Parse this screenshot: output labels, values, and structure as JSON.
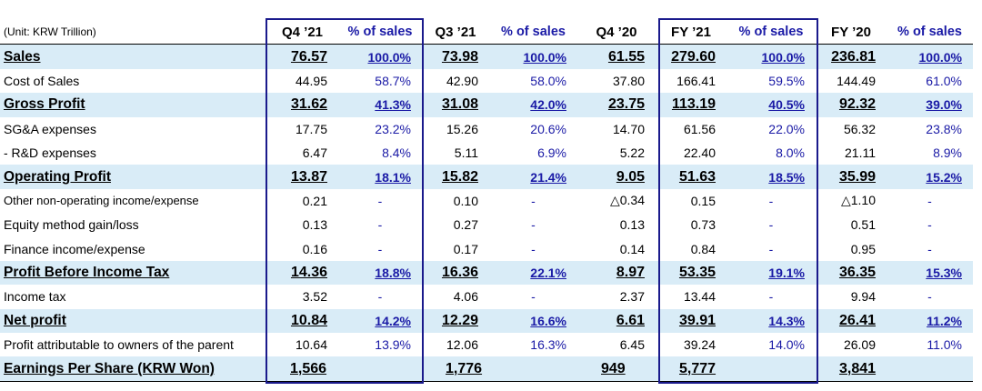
{
  "header": {
    "unit": "(Unit: KRW Trillion)",
    "columns": [
      "Q4 ’21",
      "% of sales",
      "Q3 ’21",
      "% of sales",
      "Q4 ’20",
      "FY ’21",
      "% of sales",
      "FY ’20",
      "% of sales"
    ]
  },
  "rows": [
    {
      "label": "Sales",
      "hl": true,
      "q421": "76.57",
      "q421p": "100.0%",
      "q321": "73.98",
      "q321p": "100.0%",
      "q420": "61.55",
      "fy21": "279.60",
      "fy21p": "100.0%",
      "fy20": "236.81",
      "fy20p": "100.0%"
    },
    {
      "label": "Cost of Sales",
      "q421": "44.95",
      "q421p": "58.7%",
      "q321": "42.90",
      "q321p": "58.0%",
      "q420": "37.80",
      "fy21": "166.41",
      "fy21p": "59.5%",
      "fy20": "144.49",
      "fy20p": "61.0%"
    },
    {
      "label": "Gross Profit",
      "hl": true,
      "q421": "31.62",
      "q421p": "41.3%",
      "q321": "31.08",
      "q321p": "42.0%",
      "q420": "23.75",
      "fy21": "113.19",
      "fy21p": "40.5%",
      "fy20": "92.32",
      "fy20p": "39.0%"
    },
    {
      "label": "SG&A expenses",
      "q421": "17.75",
      "q421p": "23.2%",
      "q321": "15.26",
      "q321p": "20.6%",
      "q420": "14.70",
      "fy21": "61.56",
      "fy21p": "22.0%",
      "fy20": "56.32",
      "fy20p": "23.8%"
    },
    {
      "label": " - R&D expenses",
      "q421": "6.47",
      "q421p": "8.4%",
      "q321": "5.11",
      "q321p": "6.9%",
      "q420": "5.22",
      "fy21": "22.40",
      "fy21p": "8.0%",
      "fy20": "21.11",
      "fy20p": "8.9%"
    },
    {
      "label": "Operating Profit",
      "hl": true,
      "q421": "13.87",
      "q421p": "18.1%",
      "q321": "15.82",
      "q321p": "21.4%",
      "q420": "9.05",
      "fy21": "51.63",
      "fy21p": "18.5%",
      "fy20": "35.99",
      "fy20p": "15.2%"
    },
    {
      "label": "Other non-operating income/expense",
      "small": true,
      "q421": "0.21",
      "q421p": "-",
      "q321": "0.10",
      "q321p": "-",
      "q420": "△0.34",
      "fy21": "0.15",
      "fy21p": "-",
      "fy20": "△1.10",
      "fy20p": "-"
    },
    {
      "label": "Equity method gain/loss",
      "q421": "0.13",
      "q421p": "-",
      "q321": "0.27",
      "q321p": "-",
      "q420": "0.13",
      "fy21": "0.73",
      "fy21p": "-",
      "fy20": "0.51",
      "fy20p": "-"
    },
    {
      "label": "Finance income/expense",
      "q421": "0.16",
      "q421p": "-",
      "q321": "0.17",
      "q321p": "-",
      "q420": "0.14",
      "fy21": "0.84",
      "fy21p": "-",
      "fy20": "0.95",
      "fy20p": "-"
    },
    {
      "label": "Profit Before Income Tax",
      "hl": true,
      "q421": "14.36",
      "q421p": "18.8%",
      "q321": "16.36",
      "q321p": "22.1%",
      "q420": "8.97",
      "fy21": "53.35",
      "fy21p": "19.1%",
      "fy20": "36.35",
      "fy20p": "15.3%"
    },
    {
      "label": "Income tax",
      "q421": "3.52",
      "q421p": "-",
      "q321": "4.06",
      "q321p": "-",
      "q420": "2.37",
      "fy21": "13.44",
      "fy21p": "-",
      "fy20": "9.94",
      "fy20p": "-"
    },
    {
      "label": "Net profit",
      "hl": true,
      "q421": "10.84",
      "q421p": "14.2%",
      "q321": "12.29",
      "q321p": "16.6%",
      "q420": "6.61",
      "fy21": "39.91",
      "fy21p": "14.3%",
      "fy20": "26.41",
      "fy20p": "11.2%"
    },
    {
      "label": "Profit attributable to owners of the parent",
      "q421": "10.64",
      "q421p": "13.9%",
      "q321": "12.06",
      "q321p": "16.3%",
      "q420": "6.45",
      "fy21": "39.24",
      "fy21p": "14.0%",
      "fy20": "26.09",
      "fy20p": "11.0%"
    },
    {
      "label": "Earnings Per Share (KRW Won)",
      "hl": true,
      "last": true,
      "eps": true,
      "q421": "1,566",
      "q421p": "",
      "q321": "1,776",
      "q321p": "",
      "q420": "949",
      "fy21": "5,777",
      "fy21p": "",
      "fy20": "3,841",
      "fy20p": ""
    }
  ],
  "colors": {
    "accent": "#1a1aa6",
    "highlight": "#d9ecf7",
    "box": "#1a1a8c"
  }
}
